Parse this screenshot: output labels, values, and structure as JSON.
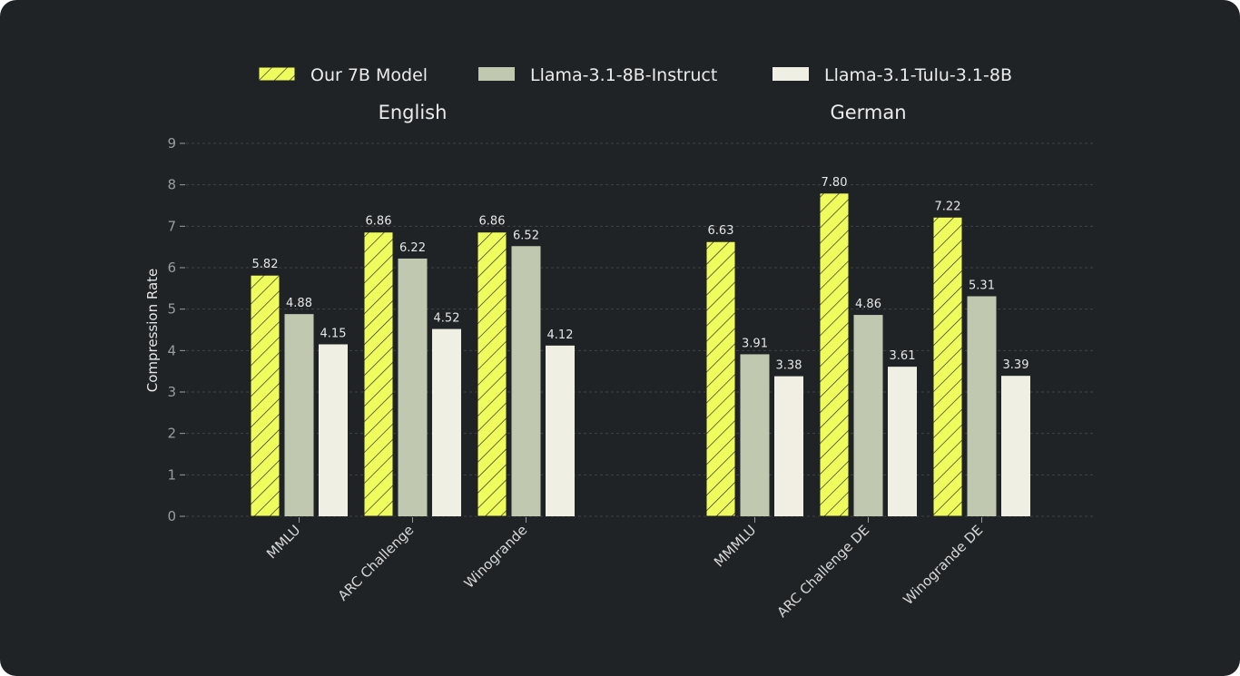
{
  "chart_data": [
    {
      "type": "bar",
      "title": "English",
      "categories": [
        "MMLU",
        "ARC Challenge",
        "Winogrande"
      ],
      "ylabel": "Compression Rate",
      "ylim": [
        0,
        9
      ],
      "yticks": [
        0,
        1,
        2,
        3,
        4,
        5,
        6,
        7,
        8,
        9
      ],
      "grid": true,
      "series": [
        {
          "name": "Our 7B Model",
          "values": [
            5.82,
            6.86,
            6.86
          ],
          "color": "#eefc5e",
          "hatch": true
        },
        {
          "name": "Llama-3.1-8B-Instruct",
          "values": [
            4.88,
            6.22,
            6.52
          ],
          "color": "#c0c8b0"
        },
        {
          "name": "Llama-3.1-Tulu-3.1-8B",
          "values": [
            4.15,
            4.52,
            4.12
          ],
          "color": "#efefe4"
        }
      ]
    },
    {
      "type": "bar",
      "title": "German",
      "categories": [
        "MMMLU",
        "ARC Challenge DE",
        "Winogrande DE"
      ],
      "ylim": [
        0,
        9
      ],
      "grid": true,
      "series": [
        {
          "name": "Our 7B Model",
          "values": [
            6.63,
            7.8,
            7.22
          ],
          "color": "#eefc5e",
          "hatch": true
        },
        {
          "name": "Llama-3.1-8B-Instruct",
          "values": [
            3.91,
            4.86,
            5.31
          ],
          "color": "#c0c8b0"
        },
        {
          "name": "Llama-3.1-Tulu-3.1-8B",
          "values": [
            3.38,
            3.61,
            3.39
          ],
          "color": "#efefe4"
        }
      ]
    }
  ],
  "legend": {
    "placement": "top-center",
    "items": [
      "Our 7B Model",
      "Llama-3.1-8B-Instruct",
      "Llama-3.1-Tulu-3.1-8B"
    ]
  }
}
